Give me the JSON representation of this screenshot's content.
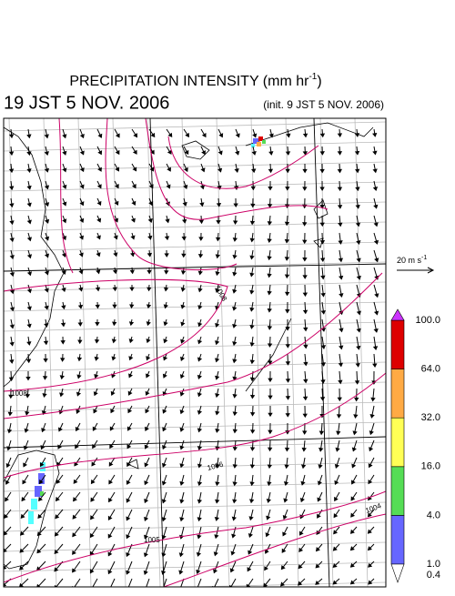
{
  "title": {
    "main": "PRECIPITATION INTENSITY (mm hr",
    "sup": "-1",
    "end": ")"
  },
  "time": "19 JST 5 NOV. 2006",
  "init": "(init. 9 JST 5 NOV. 2006)",
  "scale": {
    "main": "20 m s",
    "sup": "-1"
  },
  "colorbar": {
    "levels": [
      {
        "value": 0.4,
        "label": "0.4"
      },
      {
        "value": 1,
        "label": "1.0"
      },
      {
        "value": 4,
        "label": "4.0"
      },
      {
        "value": 16,
        "label": "16.0"
      },
      {
        "value": 32,
        "label": "32.0"
      },
      {
        "value": 64,
        "label": "64.0"
      },
      {
        "value": 100,
        "label": "100.0"
      }
    ],
    "colors": [
      "#55ffff",
      "#6666ff",
      "#55dd55",
      "#ffff55",
      "#ffaa44",
      "#dd0000"
    ],
    "over_color": "#cc33ff",
    "under_color": "#ffffff"
  },
  "contour_labels": [
    "1008",
    "1008",
    "1006",
    "1005",
    "1004"
  ]
}
